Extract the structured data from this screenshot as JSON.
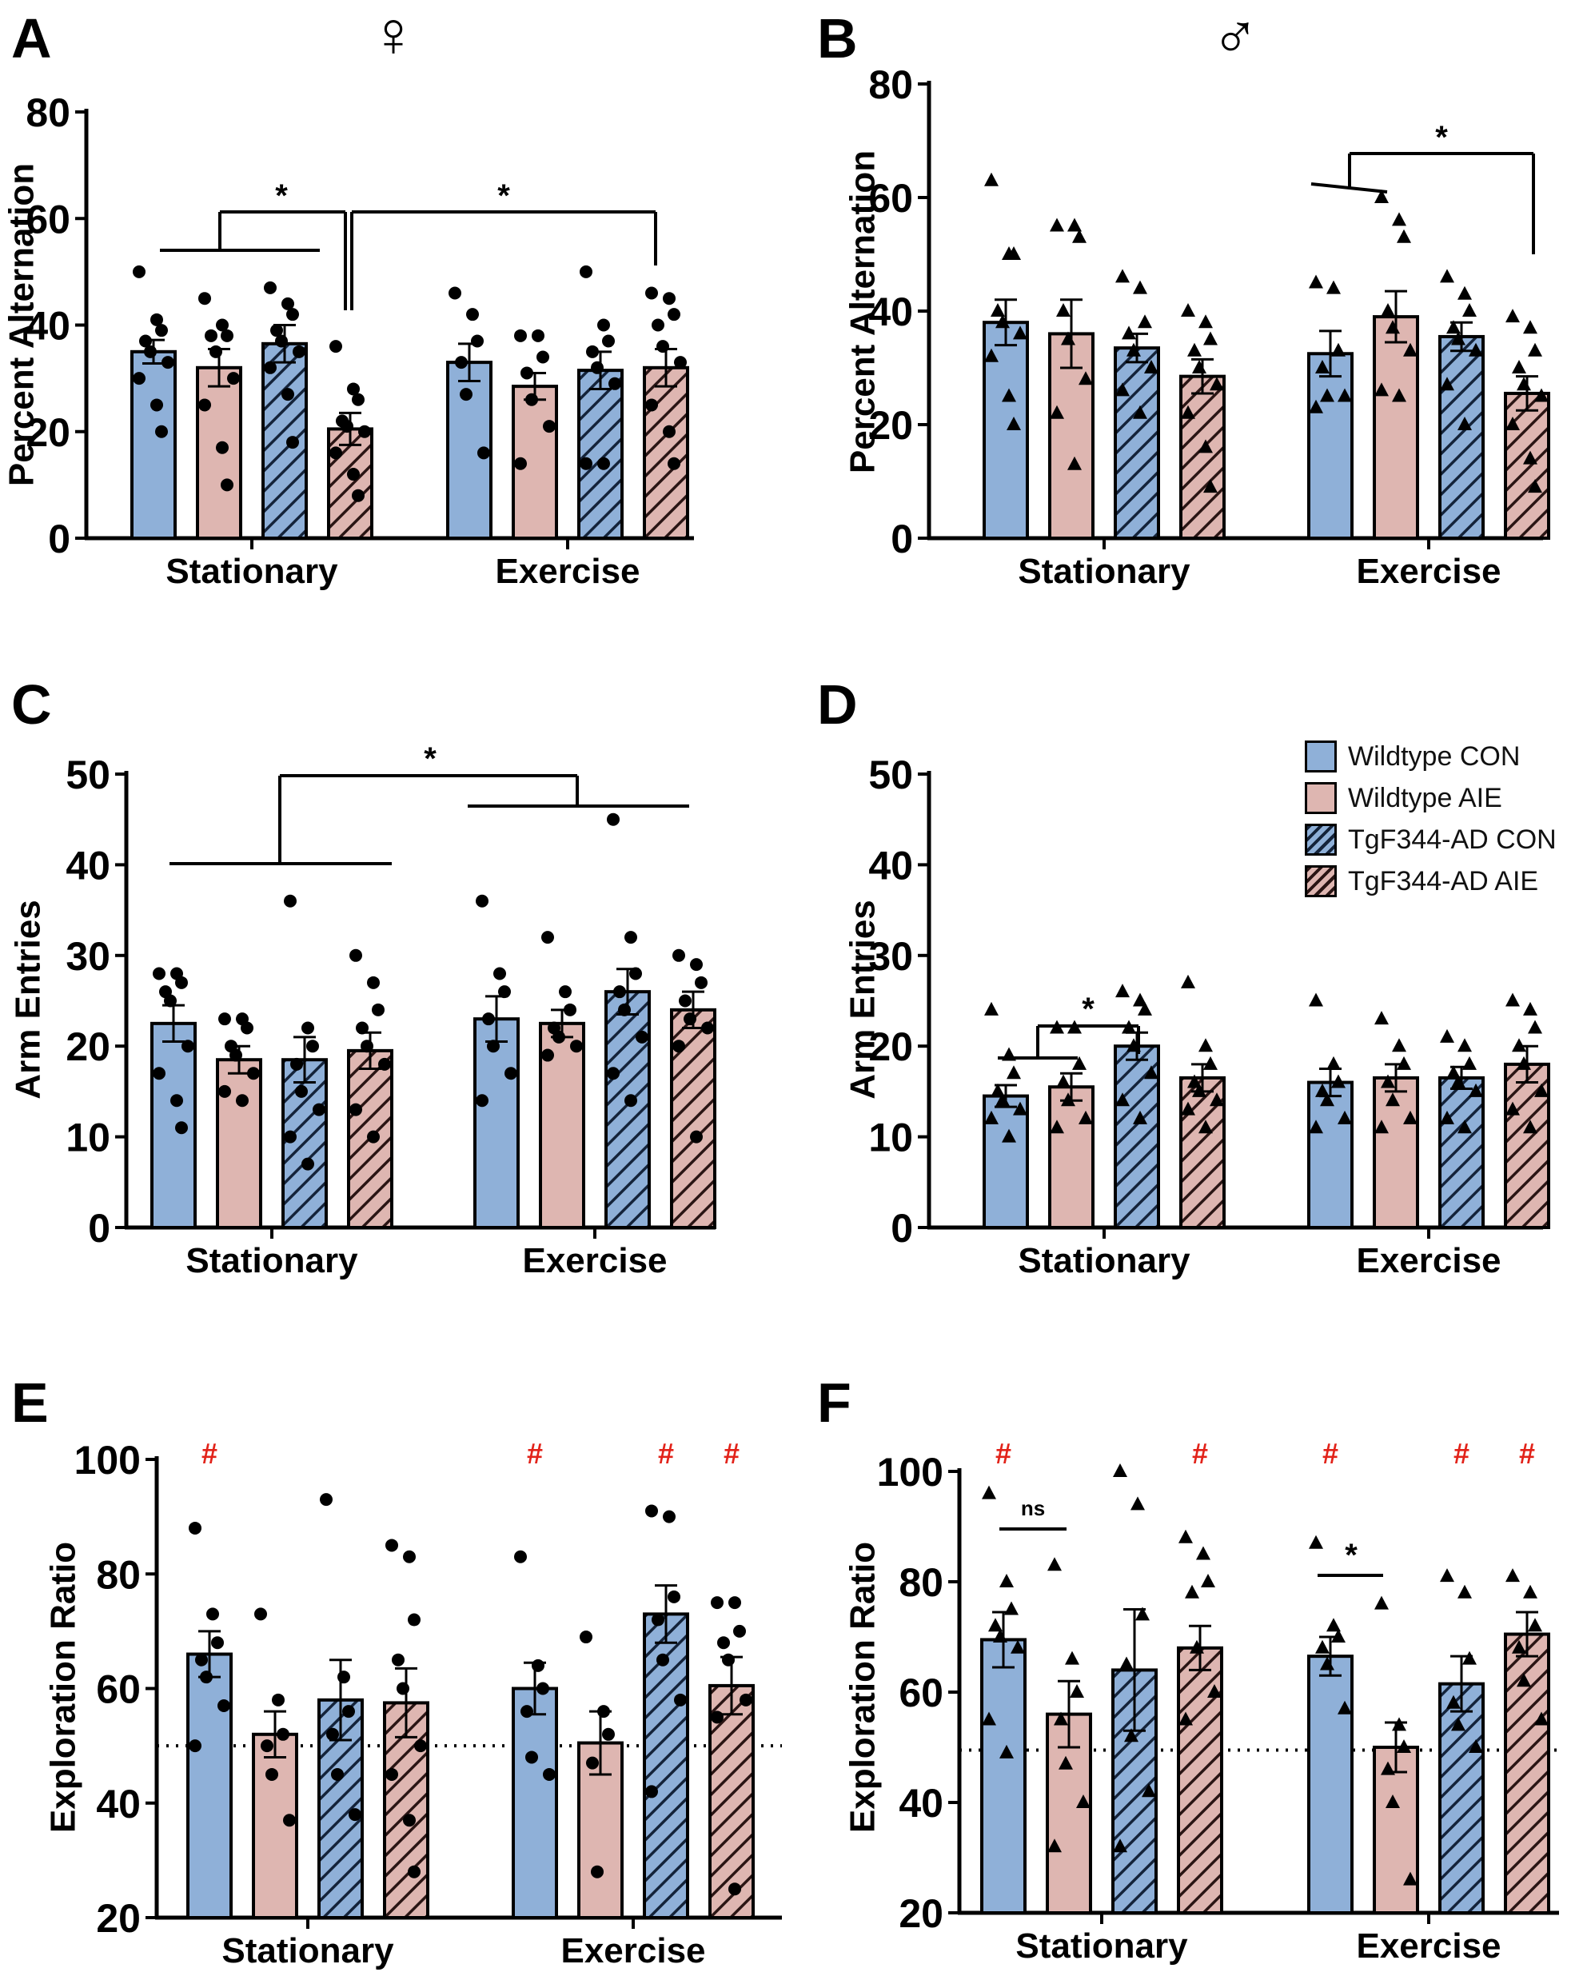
{
  "figure": {
    "colors": {
      "wt_con": "#8fb0d8",
      "wt_aie": "#deb6b1",
      "tg_con": "#8fb0d8",
      "tg_aie": "#deb6b1",
      "sig_hash": "#e2231a",
      "axis": "#000000"
    },
    "legend": {
      "items": [
        {
          "label": "Wildtype CON",
          "color": "#8fb0d8",
          "hatched": false
        },
        {
          "label": "Wildtype AIE",
          "color": "#deb6b1",
          "hatched": false
        },
        {
          "label": "TgF344-AD CON",
          "color": "#8fb0d8",
          "hatched": true
        },
        {
          "label": "TgF344-AD AIE",
          "color": "#deb6b1",
          "hatched": true
        }
      ]
    }
  },
  "chart_data": [
    {
      "panel": "A",
      "sex_symbol": "♀",
      "marker": "circle",
      "type": "bar",
      "ylabel": "Percent Alternation",
      "ylim": [
        0,
        80
      ],
      "yticks": [
        0,
        20,
        40,
        60,
        80
      ],
      "groups": [
        "Stationary",
        "Exercise"
      ],
      "series_names": [
        "Wildtype CON",
        "Wildtype AIE",
        "TgF344-AD CON",
        "TgF344-AD AIE"
      ],
      "means": [
        [
          35,
          32,
          36.5,
          20.5
        ],
        [
          33,
          28.5,
          31.5,
          32
        ]
      ],
      "sem": [
        [
          2.2,
          3.5,
          3.5,
          3
        ],
        [
          3.5,
          2.5,
          3.5,
          3.5
        ]
      ],
      "points": [
        [
          [
            50,
            41,
            39,
            37,
            35,
            33,
            30,
            25,
            20
          ],
          [
            45,
            40,
            38,
            38,
            35,
            30,
            25,
            17,
            10
          ],
          [
            47,
            44,
            42,
            39,
            37,
            35,
            32,
            27,
            18
          ],
          [
            36,
            28,
            26,
            22,
            21,
            20,
            16,
            12,
            8
          ]
        ],
        [
          [
            46,
            42,
            37,
            33,
            27,
            16
          ],
          [
            38,
            38,
            34,
            31,
            26,
            21,
            14
          ],
          [
            50,
            40,
            37,
            35,
            32,
            29,
            14,
            14
          ],
          [
            46,
            45,
            42,
            40,
            36,
            33,
            25,
            20,
            14
          ]
        ]
      ],
      "significance": [
        {
          "text": "*",
          "from": [
            0,
            0
          ],
          "to": [
            0,
            2
          ],
          "target": [
            0,
            3
          ]
        },
        {
          "text": "*",
          "from": [
            0,
            3
          ],
          "to": [
            1,
            3
          ]
        }
      ]
    },
    {
      "panel": "B",
      "sex_symbol": "♂",
      "marker": "triangle",
      "type": "bar",
      "ylabel": "Percent Alternation",
      "ylim": [
        0,
        80
      ],
      "yticks": [
        0,
        20,
        40,
        60,
        80
      ],
      "groups": [
        "Stationary",
        "Exercise"
      ],
      "series_names": [
        "Wildtype CON",
        "Wildtype AIE",
        "TgF344-AD CON",
        "TgF344-AD AIE"
      ],
      "means": [
        [
          38,
          36,
          33.5,
          28.5
        ],
        [
          32.5,
          39,
          35.5,
          25.5
        ]
      ],
      "sem": [
        [
          4,
          6,
          2.5,
          3
        ],
        [
          4,
          4.5,
          2.5,
          3
        ]
      ],
      "points": [
        [
          [
            63,
            50,
            50,
            40,
            38,
            36,
            32,
            25,
            20
          ],
          [
            55,
            55,
            53,
            40,
            35,
            28,
            22,
            13
          ],
          [
            46,
            44,
            38,
            36,
            33,
            30,
            26,
            22
          ],
          [
            40,
            38,
            35,
            33,
            30,
            27,
            22,
            16,
            9
          ]
        ],
        [
          [
            45,
            44,
            33,
            30,
            25,
            25,
            23
          ],
          [
            60,
            56,
            53,
            40,
            37,
            33,
            26,
            25
          ],
          [
            46,
            43,
            40,
            37,
            35,
            33,
            27,
            20
          ],
          [
            39,
            37,
            33,
            30,
            27,
            25,
            20,
            14,
            9
          ]
        ]
      ],
      "significance": [
        {
          "text": "*",
          "from": [
            1,
            0
          ],
          "to": [
            1,
            1
          ],
          "target": [
            1,
            3
          ]
        }
      ]
    },
    {
      "panel": "C",
      "marker": "circle",
      "type": "bar",
      "ylabel": "Arm Entries",
      "ylim": [
        0,
        50
      ],
      "yticks": [
        0,
        10,
        20,
        30,
        40,
        50
      ],
      "groups": [
        "Stationary",
        "Exercise"
      ],
      "series_names": [
        "Wildtype CON",
        "Wildtype AIE",
        "TgF344-AD CON",
        "TgF344-AD AIE"
      ],
      "means": [
        [
          22.5,
          18.5,
          18.5,
          19.5
        ],
        [
          23,
          22.5,
          26,
          24
        ]
      ],
      "sem": [
        [
          2,
          1.5,
          2.5,
          2
        ],
        [
          2.5,
          1.5,
          2.5,
          2
        ]
      ],
      "points": [
        [
          [
            28,
            28,
            27,
            26,
            25,
            20,
            17,
            14,
            11
          ],
          [
            23,
            23,
            22,
            20,
            19,
            17,
            15,
            14
          ],
          [
            36,
            22,
            20,
            18,
            15,
            13,
            10,
            7
          ],
          [
            30,
            27,
            24,
            22,
            20,
            18,
            13,
            10
          ]
        ],
        [
          [
            36,
            28,
            26,
            23,
            20,
            17,
            14
          ],
          [
            32,
            26,
            24,
            22,
            21,
            20,
            19
          ],
          [
            45,
            32,
            28,
            26,
            24,
            21,
            17,
            14
          ],
          [
            30,
            29,
            27,
            25,
            23,
            22,
            20,
            10
          ]
        ]
      ],
      "significance": [
        {
          "text": "*",
          "from": [
            0,
            0
          ],
          "to": [
            0,
            3
          ],
          "target_from": [
            1,
            0
          ],
          "target_to": [
            1,
            3
          ]
        }
      ]
    },
    {
      "panel": "D",
      "marker": "triangle",
      "type": "bar",
      "ylabel": "Arm Entries",
      "ylim": [
        0,
        50
      ],
      "yticks": [
        0,
        10,
        20,
        30,
        40,
        50
      ],
      "groups": [
        "Stationary",
        "Exercise"
      ],
      "series_names": [
        "Wildtype CON",
        "Wildtype AIE",
        "TgF344-AD CON",
        "TgF344-AD AIE"
      ],
      "means": [
        [
          14.5,
          15.5,
          20,
          16.5
        ],
        [
          16,
          16.5,
          16.5,
          18
        ]
      ],
      "sem": [
        [
          1.2,
          1.5,
          1.5,
          1.5
        ],
        [
          1.5,
          1.5,
          1.2,
          2
        ]
      ],
      "points": [
        [
          [
            24,
            19,
            17,
            15,
            14,
            13,
            12,
            10
          ],
          [
            22,
            22,
            18,
            16,
            14,
            12,
            11
          ],
          [
            26,
            25,
            24,
            22,
            20,
            17,
            14,
            12
          ],
          [
            27,
            20,
            18,
            16,
            15,
            14,
            13,
            11
          ]
        ],
        [
          [
            25,
            18,
            16,
            15,
            14,
            12,
            11
          ],
          [
            23,
            20,
            18,
            16,
            14,
            12,
            11
          ],
          [
            21,
            20,
            18,
            17,
            16,
            15,
            12,
            11
          ],
          [
            25,
            24,
            22,
            20,
            18,
            15,
            13,
            11
          ]
        ]
      ],
      "significance": [
        {
          "text": "*",
          "from": [
            0,
            0
          ],
          "to": [
            0,
            1
          ],
          "target": [
            0,
            2
          ]
        }
      ]
    },
    {
      "panel": "E",
      "marker": "circle",
      "type": "bar",
      "ylabel": "Exploration Ratio",
      "ylim": [
        20,
        100
      ],
      "yticks": [
        20,
        40,
        60,
        80,
        100
      ],
      "chance_line": 50,
      "groups": [
        "Stationary",
        "Exercise"
      ],
      "series_names": [
        "Wildtype CON",
        "Wildtype AIE",
        "TgF344-AD CON",
        "TgF344-AD AIE"
      ],
      "means": [
        [
          66,
          52,
          58,
          57.5
        ],
        [
          60,
          50.5,
          73,
          60.5
        ]
      ],
      "sem": [
        [
          4,
          4,
          7,
          6
        ],
        [
          4.5,
          5.5,
          5,
          5
        ]
      ],
      "points": [
        [
          [
            88,
            73,
            68,
            65,
            62,
            57,
            50
          ],
          [
            73,
            58,
            52,
            50,
            45,
            37
          ],
          [
            93,
            62,
            56,
            52,
            45,
            38
          ],
          [
            85,
            83,
            72,
            65,
            60,
            50,
            45,
            37,
            28
          ]
        ],
        [
          [
            83,
            64,
            60,
            56,
            48,
            45
          ],
          [
            69,
            56,
            52,
            47,
            28
          ],
          [
            91,
            90,
            76,
            72,
            65,
            58,
            42
          ],
          [
            75,
            75,
            70,
            68,
            65,
            58,
            55,
            25
          ]
        ]
      ],
      "hash_marks": [
        [
          true,
          false,
          false,
          false
        ],
        [
          true,
          false,
          true,
          true
        ]
      ],
      "hash_text": "#"
    },
    {
      "panel": "F",
      "marker": "triangle",
      "type": "bar",
      "ylabel": "Exploration Ratio",
      "ylim": [
        20,
        100
      ],
      "yticks": [
        20,
        40,
        60,
        80,
        100
      ],
      "chance_line": 49.5,
      "groups": [
        "Stationary",
        "Exercise"
      ],
      "series_names": [
        "Wildtype CON",
        "Wildtype AIE",
        "TgF344-AD CON",
        "TgF344-AD AIE"
      ],
      "means": [
        [
          69.5,
          56,
          64,
          68
        ],
        [
          66.5,
          50,
          61.5,
          70.5
        ]
      ],
      "sem": [
        [
          5,
          6,
          11,
          4
        ],
        [
          3.5,
          4.5,
          5,
          4
        ]
      ],
      "points": [
        [
          [
            96,
            80,
            75,
            72,
            70,
            68,
            55,
            49
          ],
          [
            83,
            66,
            60,
            55,
            47,
            40,
            32
          ],
          [
            100,
            94,
            74,
            65,
            52,
            42,
            32
          ],
          [
            88,
            85,
            80,
            78,
            68,
            60,
            55
          ]
        ],
        [
          [
            87,
            72,
            70,
            68,
            65,
            57
          ],
          [
            76,
            54,
            50,
            46,
            40,
            26
          ],
          [
            81,
            78,
            66,
            58,
            54,
            50
          ],
          [
            81,
            78,
            72,
            68,
            62,
            55
          ]
        ]
      ],
      "hash_marks": [
        [
          true,
          false,
          false,
          true
        ],
        [
          true,
          false,
          true,
          true
        ]
      ],
      "hash_text": "#",
      "significance": [
        {
          "text": "ns",
          "from": [
            0,
            0
          ],
          "to": [
            0,
            1
          ]
        },
        {
          "text": "*",
          "from": [
            1,
            0
          ],
          "to": [
            1,
            1
          ]
        }
      ]
    }
  ]
}
